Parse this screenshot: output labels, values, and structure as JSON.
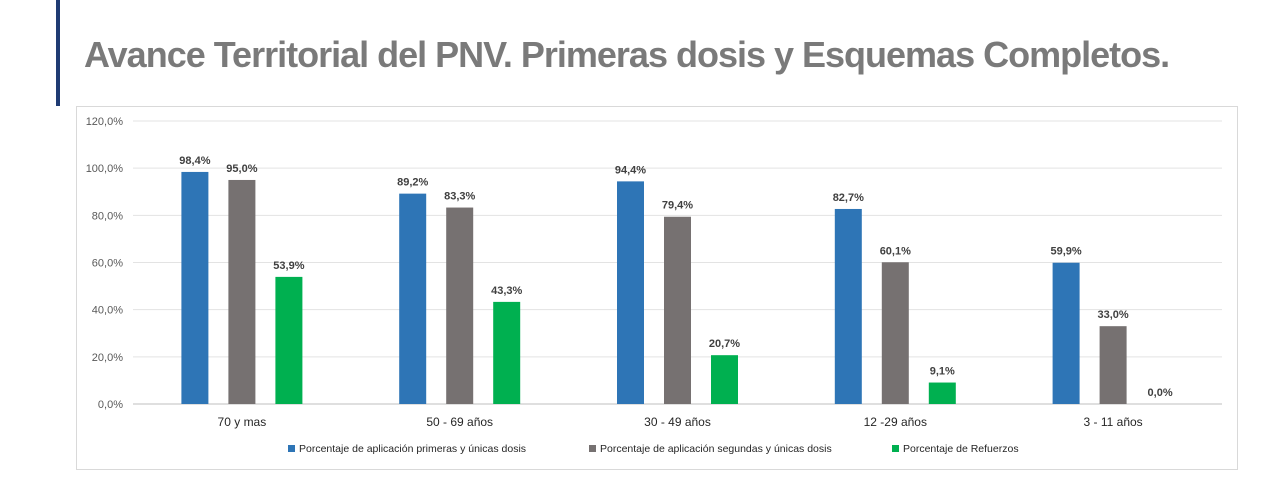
{
  "page": {
    "title": "Avance Territorial del PNV. Primeras dosis y Esquemas Completos."
  },
  "chart_data": {
    "type": "bar",
    "title": "",
    "xlabel": "",
    "ylabel": "",
    "ylim": [
      0,
      120
    ],
    "yticks": [
      "0,0%",
      "20,0%",
      "40,0%",
      "60,0%",
      "80,0%",
      "100,0%",
      "120,0%"
    ],
    "grid": true,
    "legend_position": "bottom",
    "categories": [
      "70  y mas",
      "50 - 69 años",
      "30 - 49 años",
      "12 -29 años",
      "3 - 11 años"
    ],
    "series": [
      {
        "name": "Porcentaje de aplicación primeras y únicas dosis",
        "color": "#2e75b6",
        "values": [
          98.4,
          89.2,
          94.4,
          82.7,
          59.9
        ],
        "labels": [
          "98,4%",
          "89,2%",
          "94,4%",
          "82,7%",
          "59,9%"
        ]
      },
      {
        "name": "Porcentaje de aplicación segundas y únicas dosis",
        "color": "#767171",
        "values": [
          95.0,
          83.3,
          79.4,
          60.1,
          33.0
        ],
        "labels": [
          "95,0%",
          "83,3%",
          "79,4%",
          "60,1%",
          "33,0%"
        ]
      },
      {
        "name": "Porcentaje de Refuerzos",
        "color": "#00b050",
        "values": [
          53.9,
          43.3,
          20.7,
          9.1,
          0.0
        ],
        "labels": [
          "53,9%",
          "43,3%",
          "20,7%",
          "9,1%",
          "0,0%"
        ]
      }
    ]
  }
}
